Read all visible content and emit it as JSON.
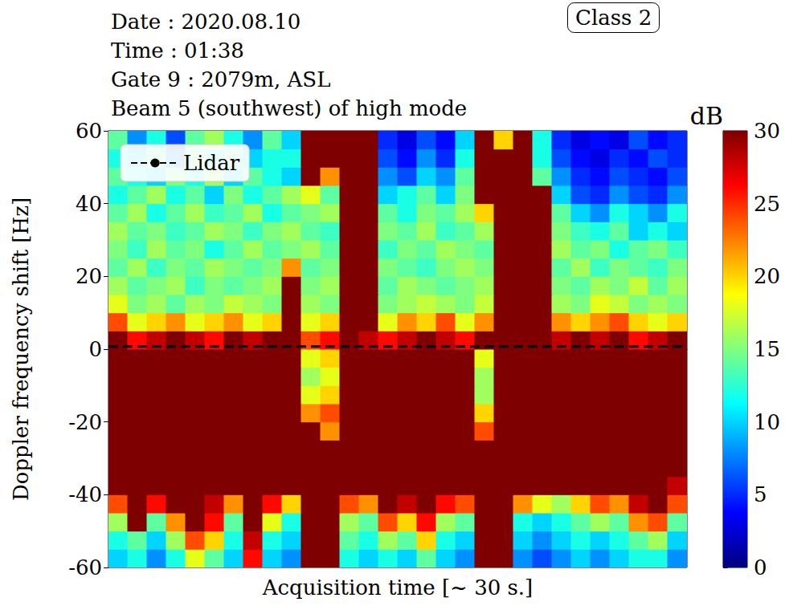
{
  "chart_data": {
    "type": "heatmap",
    "title": "Date : 2020.08.10\nTime : 01:38\nGate 9 : 2079m, ASL\nBeam 5 (southwest) of high mode",
    "annotation": "Class 2",
    "x_label": "Acquisition time [~ 30 s.]",
    "y_label": "Doppler frequency shift [Hz]",
    "xlim": [
      0,
      30
    ],
    "ylim": [
      -60,
      60
    ],
    "yticks": [
      -60,
      -40,
      -20,
      0,
      20,
      40,
      60
    ],
    "tick_labels": "y",
    "grid": false,
    "legend": "upper left",
    "x": [
      0.5,
      1.5,
      2.5,
      3.5,
      4.5,
      5.5,
      6.5,
      7.5,
      8.5,
      9.5,
      10.5,
      11.5,
      12.5,
      13.5,
      14.5,
      15.5,
      16.5,
      17.5,
      18.5,
      19.5,
      20.5,
      21.5,
      22.5,
      23.5,
      24.5,
      25.5,
      26.5,
      27.5,
      28.5,
      29.5
    ],
    "y": [
      -57.5,
      -52.5,
      -47.5,
      -42.5,
      -37.5,
      -32.5,
      -27.5,
      -22.5,
      -17.5,
      -12.5,
      -7.5,
      -2.5,
      2.5,
      7.5,
      12.5,
      17.5,
      22.5,
      27.5,
      32.5,
      37.5,
      42.5,
      47.5,
      52.5,
      57.5
    ],
    "z": [
      [
        10,
        12,
        8,
        12,
        18,
        14,
        10,
        26,
        10,
        8,
        30,
        30,
        12,
        10,
        12,
        10,
        14,
        10,
        8,
        30,
        30,
        8,
        6,
        8,
        10,
        8,
        10,
        12,
        12,
        8
      ],
      [
        12,
        14,
        10,
        16,
        24,
        20,
        12,
        28,
        12,
        10,
        30,
        30,
        14,
        12,
        16,
        14,
        20,
        12,
        10,
        30,
        30,
        10,
        8,
        10,
        12,
        10,
        12,
        14,
        16,
        10
      ],
      [
        16,
        30,
        14,
        22,
        30,
        26,
        14,
        30,
        18,
        12,
        30,
        30,
        16,
        14,
        24,
        20,
        26,
        16,
        14,
        30,
        30,
        12,
        10,
        12,
        14,
        16,
        14,
        22,
        24,
        14
      ],
      [
        24,
        30,
        26,
        30,
        30,
        28,
        22,
        30,
        26,
        20,
        30,
        30,
        24,
        22,
        30,
        28,
        30,
        26,
        24,
        30,
        30,
        22,
        18,
        16,
        20,
        24,
        22,
        28,
        30,
        24
      ],
      [
        30,
        30,
        30,
        30,
        30,
        30,
        30,
        30,
        30,
        30,
        30,
        30,
        30,
        30,
        30,
        30,
        30,
        30,
        30,
        30,
        30,
        30,
        30,
        30,
        30,
        30,
        30,
        30,
        30,
        28
      ],
      [
        30,
        30,
        30,
        30,
        30,
        30,
        30,
        30,
        30,
        30,
        30,
        30,
        30,
        30,
        30,
        30,
        30,
        30,
        30,
        30,
        30,
        30,
        30,
        30,
        30,
        30,
        30,
        30,
        30,
        30
      ],
      [
        30,
        30,
        30,
        30,
        30,
        30,
        30,
        30,
        30,
        30,
        30,
        30,
        30,
        30,
        30,
        30,
        30,
        30,
        30,
        30,
        30,
        30,
        30,
        30,
        30,
        30,
        30,
        30,
        30,
        30
      ],
      [
        30,
        30,
        30,
        30,
        30,
        30,
        30,
        30,
        30,
        30,
        30,
        22,
        30,
        30,
        30,
        30,
        30,
        30,
        30,
        24,
        30,
        30,
        30,
        30,
        30,
        30,
        30,
        30,
        30,
        30
      ],
      [
        30,
        30,
        30,
        30,
        30,
        30,
        30,
        30,
        30,
        30,
        22,
        24,
        30,
        30,
        30,
        30,
        30,
        30,
        30,
        20,
        30,
        30,
        30,
        30,
        30,
        30,
        30,
        30,
        30,
        30
      ],
      [
        30,
        30,
        30,
        30,
        30,
        30,
        30,
        30,
        30,
        30,
        18,
        20,
        30,
        30,
        30,
        30,
        30,
        30,
        30,
        16,
        30,
        30,
        30,
        30,
        30,
        30,
        30,
        30,
        30,
        30
      ],
      [
        30,
        30,
        30,
        30,
        30,
        30,
        30,
        30,
        30,
        30,
        16,
        18,
        30,
        30,
        30,
        30,
        30,
        30,
        30,
        16,
        30,
        30,
        30,
        30,
        30,
        30,
        30,
        30,
        30,
        30
      ],
      [
        30,
        30,
        30,
        30,
        30,
        30,
        30,
        30,
        30,
        30,
        18,
        20,
        30,
        30,
        30,
        30,
        30,
        30,
        30,
        18,
        30,
        30,
        30,
        30,
        30,
        30,
        30,
        30,
        30,
        30
      ],
      [
        30,
        26,
        28,
        30,
        28,
        26,
        30,
        28,
        30,
        30,
        24,
        26,
        30,
        28,
        26,
        28,
        30,
        28,
        26,
        30,
        30,
        30,
        30,
        28,
        30,
        28,
        30,
        26,
        28,
        30
      ],
      [
        24,
        18,
        20,
        22,
        18,
        20,
        22,
        18,
        20,
        30,
        18,
        20,
        30,
        30,
        18,
        22,
        20,
        24,
        18,
        22,
        30,
        30,
        30,
        22,
        20,
        22,
        24,
        20,
        18,
        20
      ],
      [
        18,
        15,
        16,
        14,
        16,
        15,
        17,
        16,
        15,
        30,
        16,
        15,
        30,
        30,
        15,
        16,
        17,
        16,
        15,
        17,
        30,
        30,
        30,
        16,
        15,
        18,
        17,
        15,
        16,
        15
      ],
      [
        16,
        14,
        15,
        16,
        13,
        15,
        14,
        15,
        16,
        30,
        15,
        16,
        30,
        30,
        14,
        16,
        15,
        14,
        15,
        16,
        30,
        30,
        30,
        15,
        14,
        16,
        15,
        17,
        14,
        16
      ],
      [
        14,
        16,
        13,
        15,
        14,
        16,
        15,
        14,
        15,
        22,
        14,
        15,
        30,
        30,
        15,
        14,
        13,
        15,
        16,
        15,
        30,
        30,
        30,
        14,
        16,
        13,
        15,
        14,
        13,
        15
      ],
      [
        15,
        13,
        16,
        14,
        15,
        12,
        14,
        16,
        14,
        15,
        16,
        14,
        30,
        30,
        13,
        15,
        14,
        16,
        15,
        14,
        30,
        30,
        30,
        16,
        14,
        15,
        12,
        14,
        15,
        13
      ],
      [
        16,
        14,
        15,
        13,
        14,
        16,
        15,
        13,
        15,
        16,
        14,
        13,
        30,
        30,
        15,
        14,
        16,
        13,
        14,
        16,
        30,
        30,
        30,
        15,
        13,
        12,
        14,
        10,
        12,
        10
      ],
      [
        14,
        16,
        12,
        14,
        16,
        13,
        14,
        16,
        12,
        14,
        15,
        16,
        30,
        30,
        14,
        12,
        15,
        14,
        16,
        20,
        30,
        30,
        30,
        14,
        10,
        8,
        12,
        10,
        8,
        12
      ],
      [
        12,
        14,
        16,
        12,
        14,
        10,
        15,
        12,
        14,
        16,
        18,
        14,
        30,
        30,
        10,
        12,
        14,
        10,
        15,
        30,
        30,
        30,
        30,
        10,
        6,
        5,
        8,
        6,
        5,
        8
      ],
      [
        14,
        12,
        10,
        15,
        12,
        16,
        10,
        14,
        12,
        10,
        30,
        22,
        30,
        30,
        8,
        6,
        10,
        8,
        14,
        30,
        30,
        30,
        14,
        8,
        5,
        4,
        6,
        5,
        4,
        6
      ],
      [
        12,
        10,
        14,
        8,
        15,
        12,
        14,
        10,
        12,
        12,
        30,
        30,
        30,
        30,
        6,
        4,
        8,
        5,
        12,
        30,
        30,
        30,
        12,
        6,
        4,
        3,
        5,
        4,
        6,
        5
      ],
      [
        14,
        8,
        12,
        6,
        14,
        16,
        12,
        8,
        14,
        10,
        30,
        30,
        30,
        30,
        5,
        3,
        6,
        4,
        10,
        30,
        20,
        30,
        12,
        5,
        3,
        4,
        3,
        6,
        4,
        5
      ]
    ],
    "colorbar_label": "dB",
    "colorbar_range": [
      0,
      30
    ],
    "colorbar_ticks": [
      0,
      5,
      10,
      15,
      20,
      25,
      30
    ],
    "series": [
      {
        "name": "Lidar",
        "type": "line",
        "line_style": "dashed",
        "color": "#000000",
        "x": [
          0,
          30
        ],
        "values": [
          0.7,
          0.7
        ]
      }
    ]
  }
}
